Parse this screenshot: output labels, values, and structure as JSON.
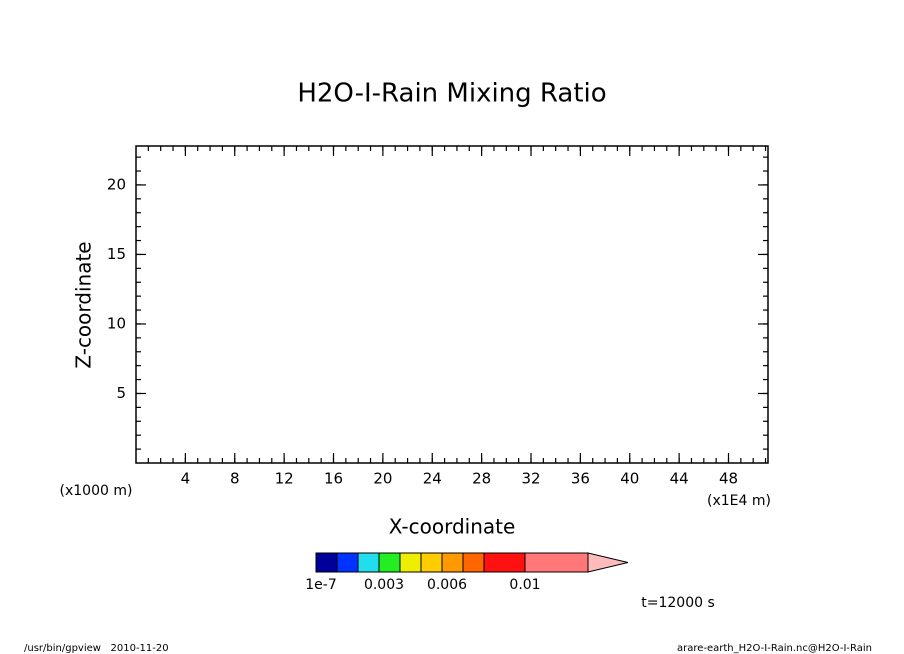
{
  "chart_data": {
    "type": "contour",
    "title": "H2O-I-Rain Mixing Ratio",
    "xlabel": "X-coordinate",
    "ylabel": "Z-coordinate",
    "xunit": "(x1E4 m)",
    "yunit": "(x1000 m)",
    "xlim": [
      0,
      51.2
    ],
    "ylim": [
      0,
      22.8
    ],
    "xticks": [
      4,
      8,
      12,
      16,
      20,
      24,
      28,
      32,
      36,
      40,
      44,
      48
    ],
    "yticks": [
      5,
      10,
      15,
      20
    ],
    "xminor": 1,
    "yminor": 1,
    "colorbar": {
      "colors": [
        "#00009a",
        "#0033ff",
        "#22ddee",
        "#22ee22",
        "#eeee00",
        "#ffcc00",
        "#ff9900",
        "#ff6600",
        "#ff1111",
        "#ff7777",
        "#ffbbbb"
      ],
      "ticks": [
        1e-07,
        0.003,
        0.006,
        0.01
      ]
    },
    "annotation": "t=12000 s",
    "footer_left": "/usr/bin/gpview   2010-11-20",
    "footer_right": "arare-earth_H2O-I-Rain.nc@H2O-I-Rain"
  }
}
